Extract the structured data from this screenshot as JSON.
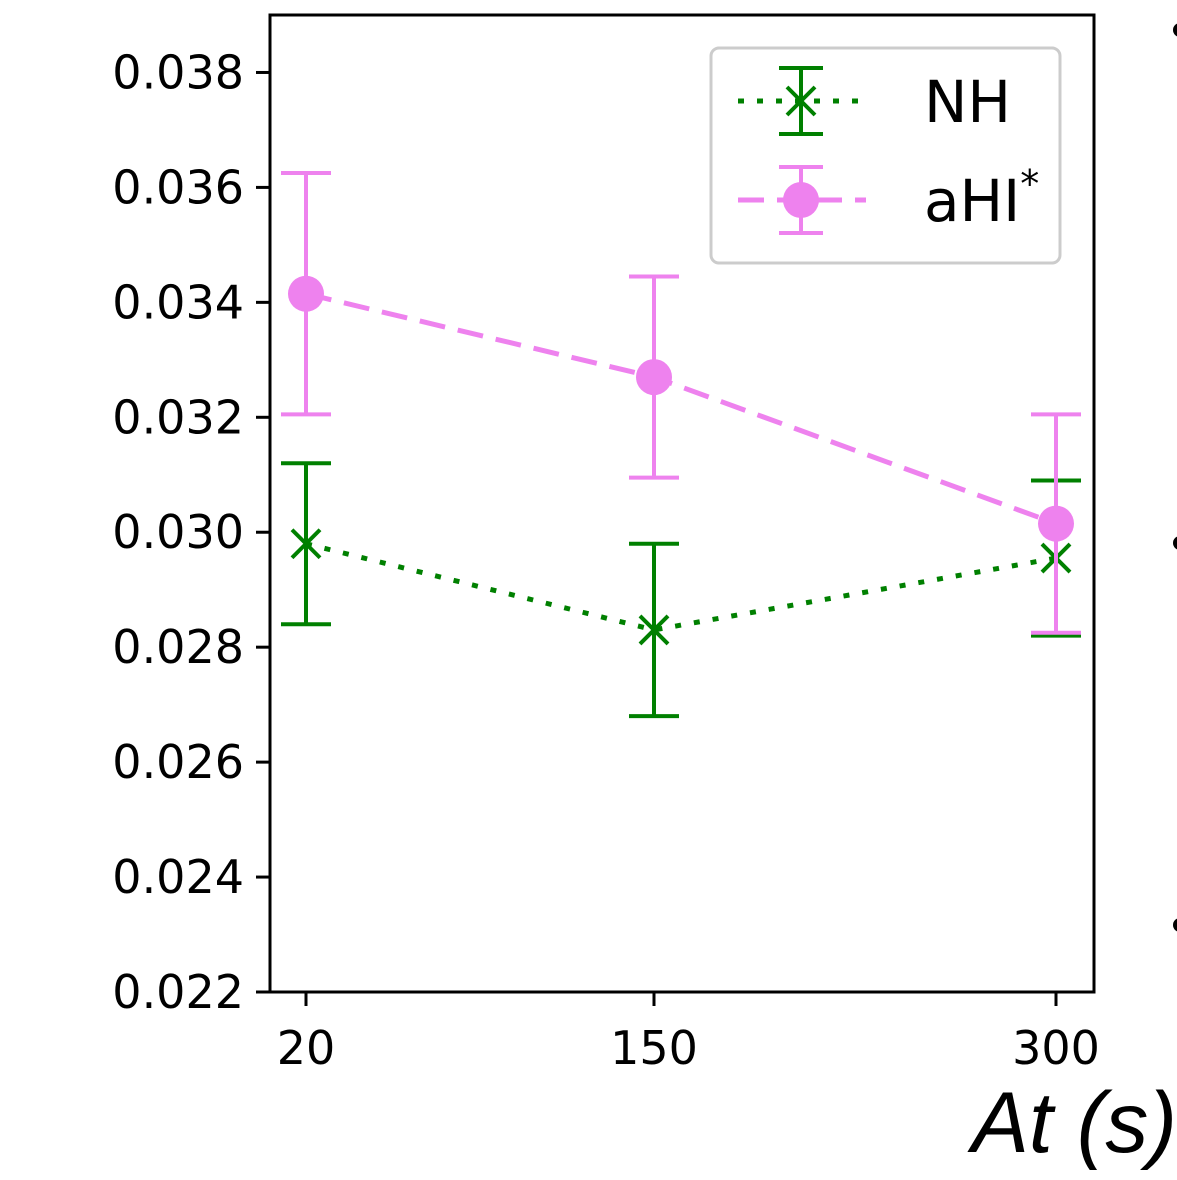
{
  "chart_data": {
    "type": "line",
    "xlabel": "At (s)",
    "ylabel": "",
    "x_categories": [
      "20",
      "150",
      "300"
    ],
    "ylim": [
      0.022,
      0.039
    ],
    "yticks": [
      "0.022",
      "0.024",
      "0.026",
      "0.028",
      "0.030",
      "0.032",
      "0.034",
      "0.036",
      "0.038"
    ],
    "grid": false,
    "legend_position": "top-right",
    "series": [
      {
        "name": "NH",
        "color": "#008000",
        "linestyle": "dotted",
        "marker": "x",
        "values": [
          0.0298,
          0.0283,
          0.02955
        ],
        "errors": [
          0.0014,
          0.0015,
          0.00135
        ]
      },
      {
        "name": "aHI",
        "name_superscript": "*",
        "color": "#ee82ee",
        "linestyle": "dashed",
        "marker": "circle",
        "values": [
          0.03415,
          0.0327,
          0.03015
        ],
        "errors": [
          0.0021,
          0.00175,
          0.0019
        ]
      }
    ]
  }
}
